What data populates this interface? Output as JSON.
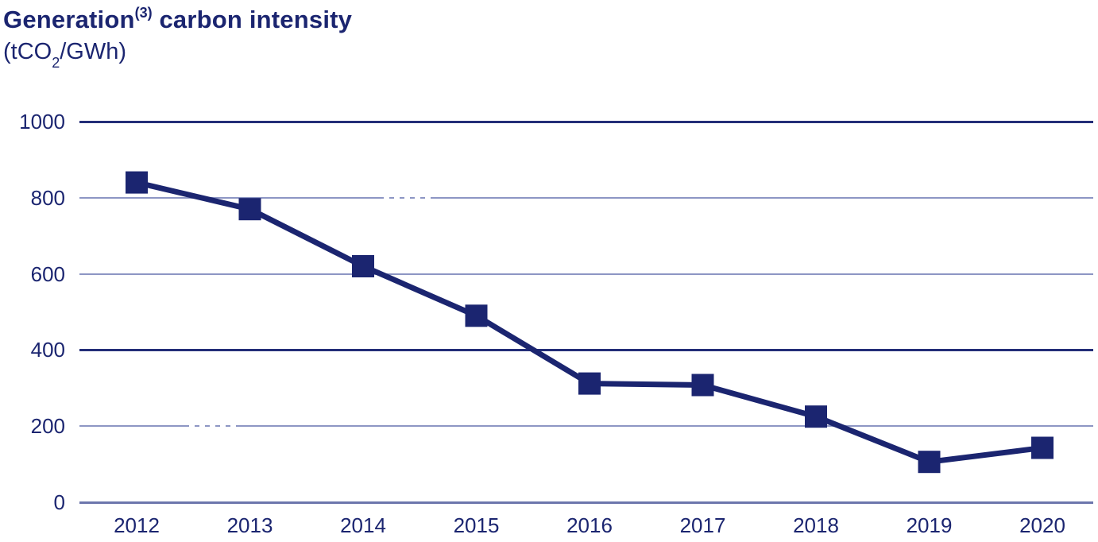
{
  "header": {
    "title_part1": "Generation",
    "title_superscript": "(3)",
    "title_part2": " carbon intensity",
    "subtitle_part1": "(tCO",
    "subtitle_sub": "2",
    "subtitle_part2": "/GWh)"
  },
  "colors": {
    "navy": "#1b2570",
    "gridline_light": "#8d96c4",
    "gridline_strong": "#242e78",
    "axis_line": "#6c76ac",
    "background": "#ffffff"
  },
  "chart_data": {
    "type": "line",
    "title": "Generation(3) carbon intensity",
    "ylabel": "tCO2/GWh",
    "xlabel": "",
    "categories": [
      "2012",
      "2013",
      "2014",
      "2015",
      "2016",
      "2017",
      "2018",
      "2019",
      "2020"
    ],
    "series": [
      {
        "name": "Generation carbon intensity (tCO2/GWh)",
        "values": [
          840,
          770,
          620,
          490,
          312,
          308,
          225,
          106,
          143
        ]
      }
    ],
    "ylim": [
      0,
      1000
    ],
    "yticks": [
      1000,
      800,
      600,
      400,
      200,
      0
    ],
    "ytick_styles": [
      "strong",
      "light",
      "light",
      "strong",
      "light",
      "axis"
    ],
    "grid": "horizontal",
    "marker": "square",
    "marker_size": 28,
    "line_width": 7,
    "legend": "none"
  }
}
